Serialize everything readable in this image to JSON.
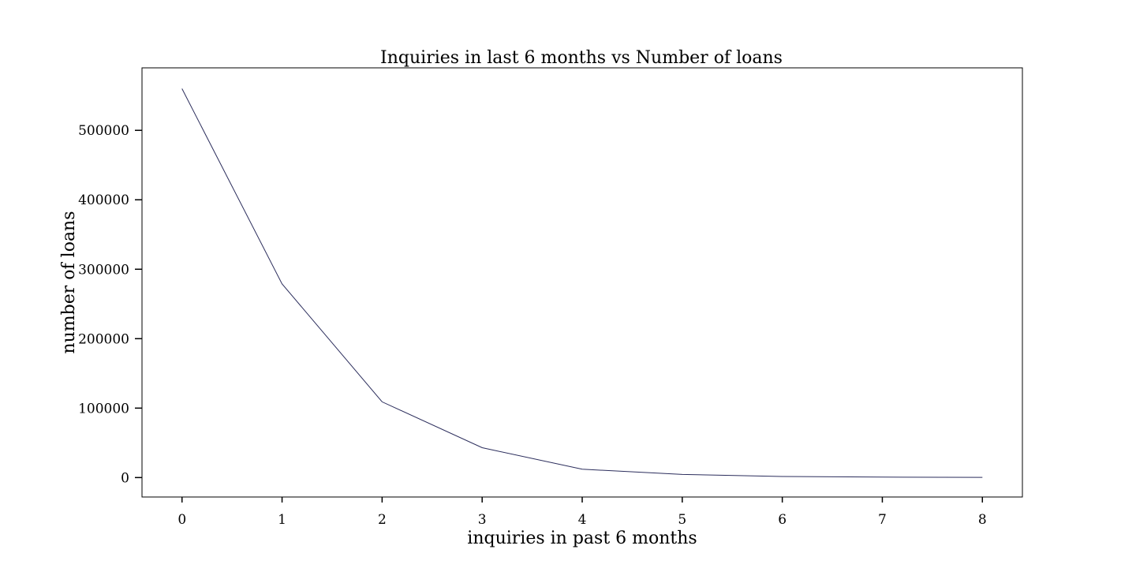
{
  "chart_data": {
    "type": "line",
    "title": "Inquiries in last 6 months vs Number of loans",
    "xlabel": "inquiries in past 6 months",
    "ylabel": "number of loans",
    "x": [
      0,
      1,
      2,
      3,
      4,
      5,
      6,
      7,
      8
    ],
    "series": [
      {
        "values": [
          560000,
          279000,
          109000,
          43000,
          12000,
          4500,
          1500,
          600,
          300
        ]
      }
    ],
    "xlim": [
      -0.4,
      8.4
    ],
    "ylim": [
      -28000,
      590000
    ],
    "xticks": [
      "0",
      "1",
      "2",
      "3",
      "4",
      "5",
      "6",
      "7",
      "8"
    ],
    "yticks": [
      "0",
      "100000",
      "200000",
      "300000",
      "400000",
      "500000"
    ],
    "ytick_values": [
      0,
      100000,
      200000,
      300000,
      400000,
      500000
    ],
    "line_color": "#2b2d5c",
    "grid": false,
    "legend": "none"
  }
}
